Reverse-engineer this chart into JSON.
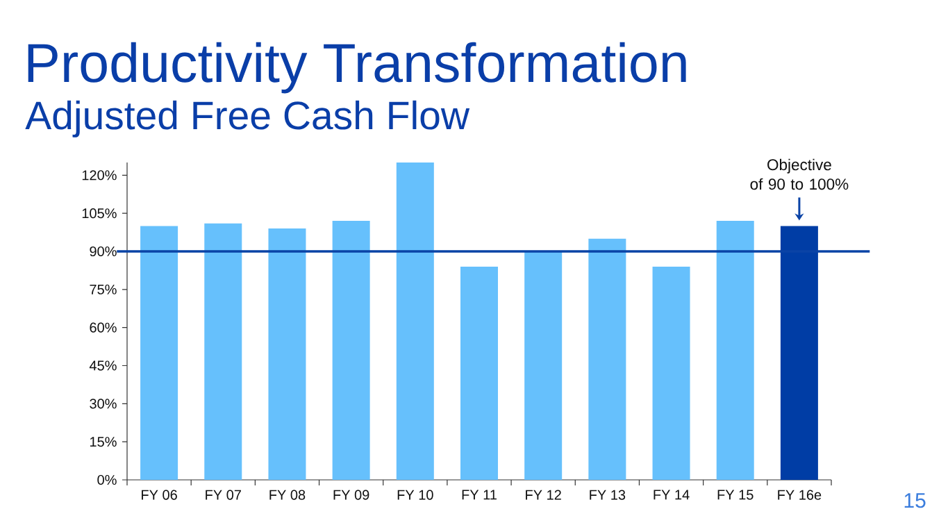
{
  "chart_data": {
    "type": "bar",
    "title": "Productivity Transformation",
    "subtitle": "Adjusted Free Cash Flow",
    "categories": [
      "FY 06",
      "FY 07",
      "FY 08",
      "FY 09",
      "FY 10",
      "FY 11",
      "FY 12",
      "FY 13",
      "FY 14",
      "FY 15",
      "FY 16e"
    ],
    "values": [
      100,
      101,
      99,
      102,
      125,
      84,
      90,
      95,
      84,
      102,
      100
    ],
    "colors": [
      "#66c0fc",
      "#66c0fc",
      "#66c0fc",
      "#66c0fc",
      "#66c0fc",
      "#66c0fc",
      "#66c0fc",
      "#66c0fc",
      "#66c0fc",
      "#66c0fc",
      "#003da5"
    ],
    "ylim": [
      0,
      125
    ],
    "yticks": [
      {
        "value": 0,
        "label": "0%"
      },
      {
        "value": 15,
        "label": "15%"
      },
      {
        "value": 30,
        "label": "30%"
      },
      {
        "value": 45,
        "label": "45%"
      },
      {
        "value": 60,
        "label": "60%"
      },
      {
        "value": 75,
        "label": "75%"
      },
      {
        "value": 90,
        "label": "90%"
      },
      {
        "value": 105,
        "label": "105%"
      },
      {
        "value": 120,
        "label": "120%"
      }
    ],
    "ref_lines": [
      {
        "axis": "y",
        "value": 90,
        "color": "#0a43a6"
      }
    ],
    "annotations": [
      {
        "text": "Objective\nof 90 to 100%",
        "x": "FY 16e",
        "y": 100
      },
      "15"
    ]
  }
}
